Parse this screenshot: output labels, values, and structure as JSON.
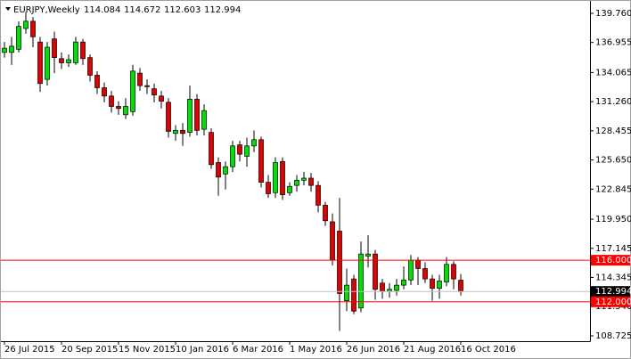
{
  "chart_data": {
    "type": "candlestick",
    "title": "EURJPY,Weekly",
    "categories": [
      "26 Jul 2015",
      null,
      null,
      null,
      null,
      null,
      null,
      null,
      "20 Sep 2015",
      null,
      null,
      null,
      null,
      null,
      null,
      null,
      "15 Nov 2015",
      null,
      null,
      null,
      null,
      null,
      null,
      null,
      "10 Jan 2016",
      null,
      null,
      null,
      null,
      null,
      null,
      null,
      "6 Mar 2016",
      null,
      null,
      null,
      null,
      null,
      null,
      null,
      "1 May 2016",
      null,
      null,
      null,
      null,
      null,
      null,
      null,
      "26 Jun 2016",
      null,
      null,
      null,
      null,
      null,
      null,
      null,
      "21 Aug 2016",
      null,
      null,
      null,
      null,
      null,
      null,
      null,
      "16 Oct 2016"
    ],
    "open": [
      136.0,
      136.0,
      136.3,
      138.3,
      139.0,
      137.0,
      133.4,
      137.3,
      135.4,
      135.0,
      135.0,
      137.0,
      135.5,
      133.8,
      132.6,
      131.8,
      130.8,
      130.0,
      130.3,
      134.0,
      132.8,
      132.5,
      131.8,
      131.2,
      128.2,
      128.5,
      128.3,
      131.5,
      128.6,
      128.3,
      125.4,
      124.3,
      125.0,
      127.1,
      126.0,
      127.0,
      127.6,
      123.5,
      122.5,
      125.5,
      122.5,
      123.2,
      123.7,
      123.9,
      123.2,
      121.3,
      119.7,
      118.8,
      112.1,
      114.2,
      111.4,
      116.4,
      116.6,
      113.8,
      113.0,
      113.1,
      113.6,
      114.1,
      116.0,
      115.2,
      114.2,
      113.3,
      113.9,
      115.6,
      114.084
    ],
    "high": [
      137.0,
      137.5,
      139.0,
      139.9,
      139.4,
      137.5,
      137.0,
      138.0,
      136.0,
      135.8,
      137.5,
      137.3,
      135.8,
      134.2,
      133.1,
      132.3,
      131.3,
      131.6,
      134.8,
      134.5,
      133.4,
      133.0,
      132.3,
      131.6,
      129.0,
      129.2,
      132.8,
      132.0,
      131.0,
      128.7,
      125.9,
      125.5,
      127.5,
      127.5,
      127.8,
      128.5,
      127.9,
      124.2,
      125.9,
      125.9,
      123.5,
      124.2,
      124.5,
      124.4,
      123.6,
      121.6,
      120.5,
      122.0,
      115.2,
      114.6,
      117.8,
      118.4,
      117.0,
      114.2,
      113.8,
      114.2,
      115.4,
      116.5,
      116.3,
      115.8,
      114.6,
      114.6,
      116.3,
      115.9,
      114.672
    ],
    "low": [
      135.5,
      134.8,
      136.0,
      137.8,
      136.5,
      132.2,
      132.8,
      134.0,
      134.4,
      134.6,
      134.8,
      134.8,
      133.2,
      132.0,
      131.2,
      130.2,
      130.0,
      129.6,
      129.9,
      132.3,
      132.0,
      131.2,
      130.6,
      127.8,
      127.5,
      127.0,
      127.9,
      128.0,
      128.0,
      124.8,
      122.2,
      122.8,
      124.5,
      125.5,
      125.0,
      126.4,
      123.0,
      122.0,
      122.0,
      121.8,
      122.2,
      122.6,
      123.2,
      122.6,
      120.6,
      119.3,
      115.5,
      109.2,
      111.1,
      110.8,
      111.0,
      115.3,
      112.2,
      112.3,
      112.4,
      112.6,
      113.2,
      113.6,
      113.6,
      113.8,
      112.1,
      112.3,
      113.5,
      113.2,
      112.603
    ],
    "close": [
      136.4,
      136.6,
      138.5,
      139.0,
      137.5,
      133.0,
      136.5,
      135.5,
      135.0,
      135.3,
      137.0,
      135.4,
      133.8,
      132.6,
      131.8,
      130.8,
      130.6,
      130.8,
      134.2,
      132.8,
      132.7,
      131.9,
      131.3,
      128.4,
      128.5,
      128.2,
      131.5,
      128.5,
      130.4,
      125.2,
      124.0,
      125.0,
      127.0,
      126.2,
      127.0,
      127.6,
      123.5,
      122.4,
      125.4,
      122.3,
      123.1,
      123.7,
      123.9,
      123.2,
      121.3,
      119.8,
      116.0,
      112.8,
      113.6,
      111.1,
      116.6,
      116.6,
      113.2,
      113.0,
      113.2,
      113.6,
      114.1,
      116.0,
      115.2,
      114.2,
      113.3,
      114.0,
      115.6,
      114.2,
      112.994
    ],
    "up_color": "#00e000",
    "down_color": "#e00000",
    "outline_color": "#000000",
    "ylim": [
      108.21,
      140.7
    ],
    "yticks": [
      {
        "value": 139.76,
        "label": "139.760"
      },
      {
        "value": 136.955,
        "label": "136.955"
      },
      {
        "value": 134.065,
        "label": "134.065"
      },
      {
        "value": 131.26,
        "label": "131.260"
      },
      {
        "value": 128.455,
        "label": "128.455"
      },
      {
        "value": 125.65,
        "label": "125.650"
      },
      {
        "value": 122.845,
        "label": "122.845"
      },
      {
        "value": 119.95,
        "label": "119.950"
      },
      {
        "value": 117.145,
        "label": "117.145"
      },
      {
        "value": 114.345,
        "label": "114.345"
      },
      {
        "value": 111.54,
        "label": "111.540"
      },
      {
        "value": 108.725,
        "label": "108.725"
      }
    ],
    "hlines": [
      {
        "value": 116,
        "label": "116.000",
        "color": "#ff0000"
      },
      {
        "value": 112,
        "label": "112.000",
        "color": "#ff0000"
      }
    ],
    "bid_line_color": "#c0c0c0"
  }
}
